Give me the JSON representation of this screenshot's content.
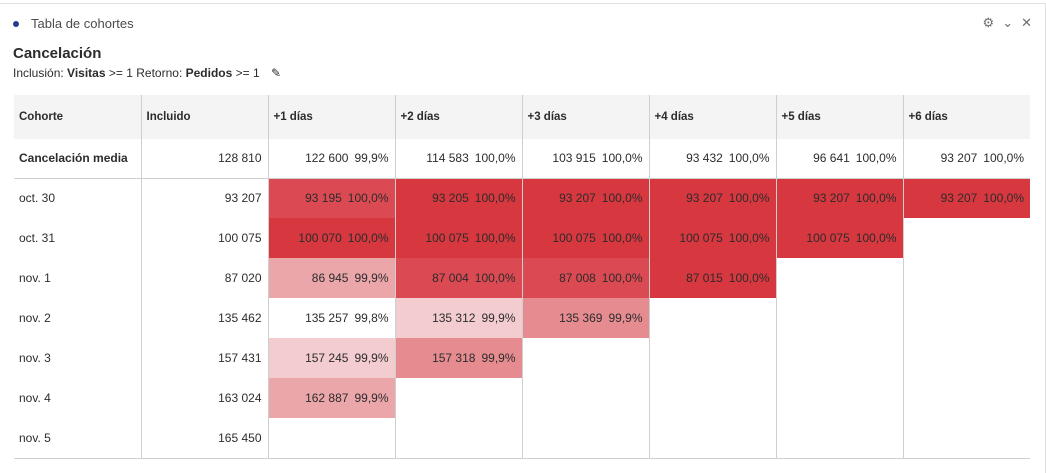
{
  "panel": {
    "title": "Tabla de cohortes"
  },
  "report": {
    "title": "Cancelación",
    "inclusion_label": "Inclusión:",
    "inclusion_metric": "Visitas",
    "inclusion_cond": ">= 1",
    "return_label": "Retorno:",
    "return_metric": "Pedidos",
    "return_cond": ">= 1"
  },
  "colors": {
    "0": "#ffffff",
    "1": "#f3cccf",
    "2": "#eba6aa",
    "3": "#e68b90",
    "4": "#db4a52",
    "5": "#d7373f"
  },
  "headers": [
    "Cohorte",
    "Incluido",
    "+1 días",
    "+2 días",
    "+3 días",
    "+4 días",
    "+5 días",
    "+6 días"
  ],
  "average": {
    "label": "Cancelación media",
    "included": "128 810",
    "cells": [
      [
        "122 600",
        "99,9%"
      ],
      [
        "114 583",
        "100,0%"
      ],
      [
        "103 915",
        "100,0%"
      ],
      [
        "93 432",
        "100,0%"
      ],
      [
        "96 641",
        "100,0%"
      ],
      [
        "93 207",
        "100,0%"
      ]
    ]
  },
  "rows": [
    {
      "label": "oct. 30",
      "included": "93 207",
      "cells": [
        [
          "93 195",
          "100,0%",
          4
        ],
        [
          "93 205",
          "100,0%",
          5
        ],
        [
          "93 207",
          "100,0%",
          5
        ],
        [
          "93 207",
          "100,0%",
          5
        ],
        [
          "93 207",
          "100,0%",
          5
        ],
        [
          "93 207",
          "100,0%",
          5
        ]
      ]
    },
    {
      "label": "oct. 31",
      "included": "100 075",
      "cells": [
        [
          "100 070",
          "100,0%",
          5
        ],
        [
          "100 075",
          "100,0%",
          5
        ],
        [
          "100 075",
          "100,0%",
          5
        ],
        [
          "100 075",
          "100,0%",
          5
        ],
        [
          "100 075",
          "100,0%",
          5
        ]
      ]
    },
    {
      "label": "nov. 1",
      "included": "87 020",
      "cells": [
        [
          "86 945",
          "99,9%",
          2
        ],
        [
          "87 004",
          "100,0%",
          4
        ],
        [
          "87 008",
          "100,0%",
          4
        ],
        [
          "87 015",
          "100,0%",
          5
        ]
      ]
    },
    {
      "label": "nov. 2",
      "included": "135 462",
      "cells": [
        [
          "135 257",
          "99,8%",
          0
        ],
        [
          "135 312",
          "99,9%",
          1
        ],
        [
          "135 369",
          "99,9%",
          3
        ]
      ]
    },
    {
      "label": "nov. 3",
      "included": "157 431",
      "cells": [
        [
          "157 245",
          "99,9%",
          1
        ],
        [
          "157 318",
          "99,9%",
          3
        ]
      ]
    },
    {
      "label": "nov. 4",
      "included": "163 024",
      "cells": [
        [
          "162 887",
          "99,9%",
          2
        ]
      ]
    },
    {
      "label": "nov. 5",
      "included": "165 450",
      "cells": []
    }
  ]
}
